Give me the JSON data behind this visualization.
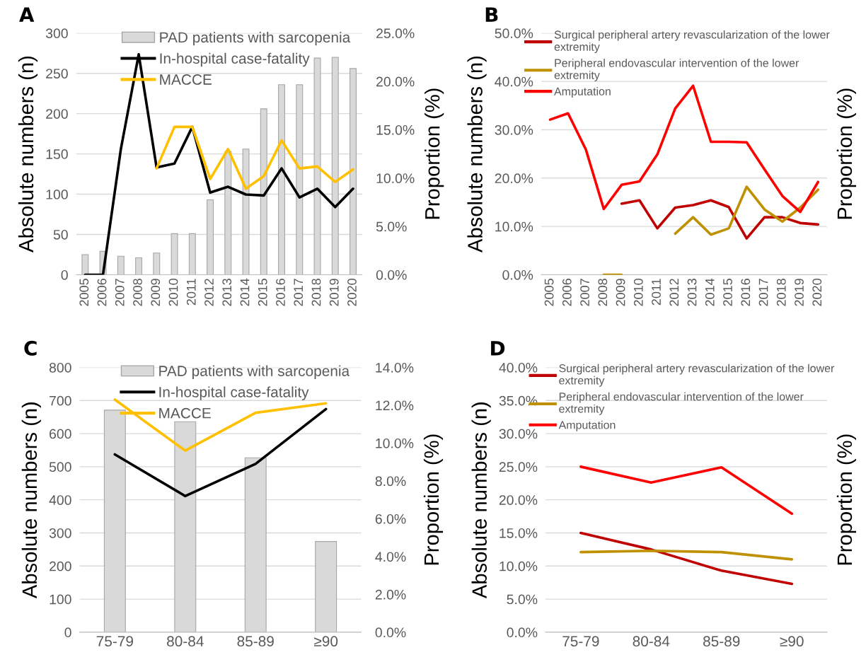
{
  "chart_data": [
    {
      "type": "bar",
      "title": "A",
      "categories": [
        "2005",
        "2006",
        "2007",
        "2008",
        "2009",
        "2010",
        "2011",
        "2012",
        "2013",
        "2014",
        "2015",
        "2016",
        "2017",
        "2018",
        "2019",
        "2020"
      ],
      "series": [
        {
          "name": "PAD patients with sarcopenia",
          "type": "bar",
          "color": "#d9d9d9",
          "values": [
            25,
            29,
            23,
            21,
            27,
            51,
            51,
            93,
            153,
            156,
            206,
            236,
            236,
            269,
            270,
            256
          ]
        },
        {
          "name": "In-hospital case-fatality",
          "type": "line",
          "axis": "y2",
          "color": "#000000",
          "values": [
            0,
            0,
            13.0,
            22.8,
            11.1,
            11.5,
            15.3,
            8.5,
            9.1,
            8.3,
            8.2,
            11.0,
            8.0,
            8.9,
            7.0,
            8.9
          ]
        },
        {
          "name": "MACCE",
          "type": "line",
          "axis": "y2",
          "color": "#ffc000",
          "values": [
            null,
            null,
            null,
            null,
            11.0,
            15.3,
            15.3,
            9.9,
            13.0,
            8.9,
            10.2,
            13.9,
            11.0,
            11.2,
            9.6,
            10.9
          ]
        }
      ],
      "ylabel": "Absolute numbers (n)",
      "y2label": "Proportion (%)",
      "ylim": [
        0,
        300
      ],
      "yticks": [
        0,
        50,
        100,
        150,
        200,
        250,
        300
      ],
      "y2lim": [
        0,
        25
      ],
      "y2ticks": [
        {
          "value": 0,
          "label": "0.0%"
        },
        {
          "value": 5,
          "label": "5.0%"
        },
        {
          "value": 10,
          "label": "10.0%"
        },
        {
          "value": 15,
          "label": "15.0%"
        },
        {
          "value": 20,
          "label": "20.0%"
        },
        {
          "value": 25,
          "label": "25.0%"
        }
      ],
      "grid": "y",
      "legend": "top right"
    },
    {
      "type": "line",
      "title": "B",
      "categories": [
        "2005",
        "2006",
        "2007",
        "2008",
        "2009",
        "2010",
        "2011",
        "2012",
        "2013",
        "2014",
        "2015",
        "2016",
        "2017",
        "2018",
        "2019",
        "2020"
      ],
      "series": [
        {
          "name": "Surgical peripheral artery revascularization of the lower\nextremity",
          "color": "#c00000",
          "values": [
            null,
            null,
            null,
            null,
            14.7,
            15.4,
            9.6,
            13.9,
            14.4,
            15.4,
            14.0,
            7.5,
            11.9,
            11.9,
            10.7,
            10.4
          ]
        },
        {
          "name": "Peripheral endovascular intervention of the lower\nextremity",
          "color": "#bf9000",
          "values": [
            null,
            null,
            null,
            0,
            0,
            null,
            null,
            8.5,
            11.9,
            8.3,
            9.6,
            18.2,
            13.5,
            11.0,
            13.9,
            17.6
          ]
        },
        {
          "name": "Amputation",
          "color": "#ff0000",
          "values": [
            32.1,
            33.4,
            25.9,
            13.6,
            18.6,
            19.3,
            24.9,
            34.4,
            39.1,
            27.5,
            27.5,
            27.4,
            21.8,
            16.3,
            13.0,
            19.2
          ]
        }
      ],
      "ylabel": "Absolute numbers (n)",
      "y2label": "Proportion (%)",
      "ylim": [
        0,
        50
      ],
      "yticks": [
        {
          "value": 0,
          "label": "0.0%"
        },
        {
          "value": 10,
          "label": "10.0%"
        },
        {
          "value": 20,
          "label": "20.0%"
        },
        {
          "value": 30,
          "label": "30.0%"
        },
        {
          "value": 40,
          "label": "40.0%"
        },
        {
          "value": 50,
          "label": "50.0%"
        }
      ],
      "grid": "y",
      "legend": "top left"
    },
    {
      "type": "bar",
      "title": "C",
      "categories": [
        "75-79",
        "80-84",
        "85-89",
        "≥90"
      ],
      "series": [
        {
          "name": "PAD patients with sarcopenia",
          "type": "bar",
          "color": "#d9d9d9",
          "values": [
            671,
            636,
            527,
            274
          ]
        },
        {
          "name": "In-hospital case-fatality",
          "type": "line",
          "axis": "y2",
          "color": "#000000",
          "values": [
            9.4,
            7.2,
            8.9,
            11.8
          ]
        },
        {
          "name": "MACCE",
          "type": "line",
          "axis": "y2",
          "color": "#ffc000",
          "values": [
            12.3,
            9.6,
            11.6,
            12.1
          ]
        }
      ],
      "ylabel": "Absolute numbers (n)",
      "y2label": "Proportion (%)",
      "ylim": [
        0,
        800
      ],
      "yticks": [
        0,
        100,
        200,
        300,
        400,
        500,
        600,
        700,
        800
      ],
      "y2lim": [
        0,
        14
      ],
      "y2ticks": [
        {
          "value": 0,
          "label": "0.0%"
        },
        {
          "value": 2,
          "label": "2.0%"
        },
        {
          "value": 4,
          "label": "4.0%"
        },
        {
          "value": 6,
          "label": "6.0%"
        },
        {
          "value": 8,
          "label": "8.0%"
        },
        {
          "value": 10,
          "label": "10.0%"
        },
        {
          "value": 12,
          "label": "12.0%"
        },
        {
          "value": 14,
          "label": "14.0%"
        }
      ],
      "grid": "y",
      "legend": "top right"
    },
    {
      "type": "line",
      "title": "D",
      "categories": [
        "75-79",
        "80-84",
        "85-89",
        "≥90"
      ],
      "series": [
        {
          "name": "Surgical peripheral artery revascularization of the lower\nextremity",
          "color": "#c00000",
          "values": [
            15.0,
            12.5,
            9.3,
            7.3
          ]
        },
        {
          "name": "Peripheral endovascular intervention of the lower\nextremity",
          "color": "#bf9000",
          "values": [
            12.1,
            12.3,
            12.1,
            11.0
          ]
        },
        {
          "name": "Amputation",
          "color": "#ff0000",
          "values": [
            25.0,
            22.6,
            24.9,
            17.9
          ]
        }
      ],
      "ylabel": "Absolute numbers (n)",
      "y2label": "Proportion (%)",
      "ylim": [
        0,
        40
      ],
      "yticks": [
        {
          "value": 0,
          "label": "0.0%"
        },
        {
          "value": 5,
          "label": "5.0%"
        },
        {
          "value": 10,
          "label": "10.0%"
        },
        {
          "value": 15,
          "label": "15.0%"
        },
        {
          "value": 20,
          "label": "20.0%"
        },
        {
          "value": 25,
          "label": "25.0%"
        },
        {
          "value": 30,
          "label": "30.0%"
        },
        {
          "value": 35,
          "label": "35.0%"
        },
        {
          "value": 40,
          "label": "40.0%"
        }
      ],
      "grid": "y",
      "legend": "top left"
    }
  ]
}
